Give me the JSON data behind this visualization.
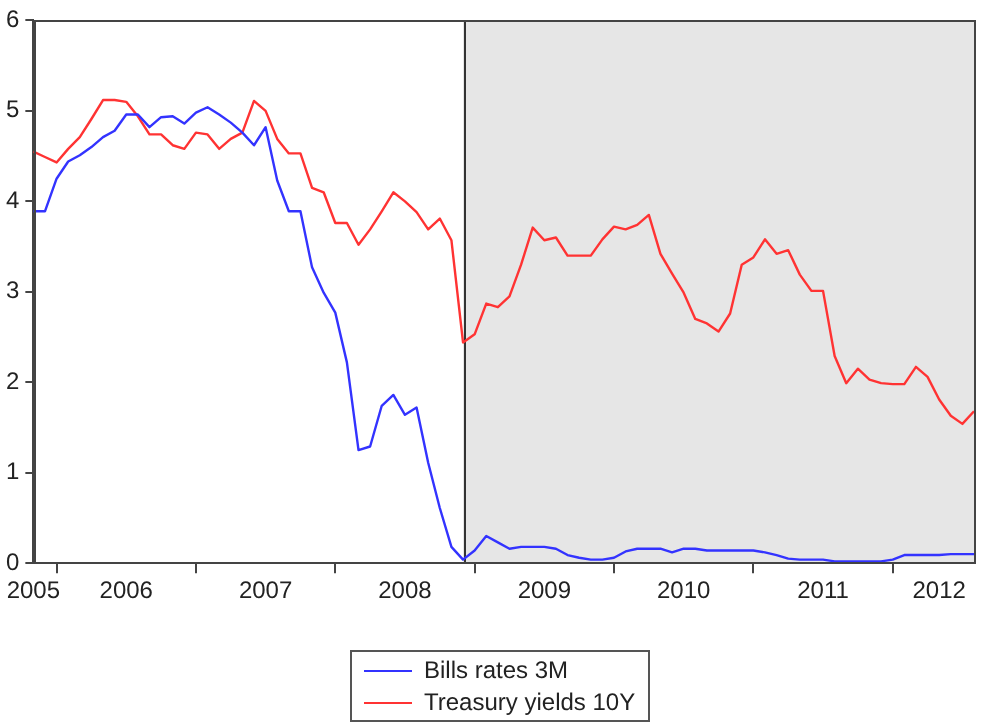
{
  "chart_data": {
    "type": "line",
    "x": [
      "2005-11",
      "2005-12",
      "2006-01",
      "2006-02",
      "2006-03",
      "2006-04",
      "2006-05",
      "2006-06",
      "2006-07",
      "2006-08",
      "2006-09",
      "2006-10",
      "2006-11",
      "2006-12",
      "2007-01",
      "2007-02",
      "2007-03",
      "2007-04",
      "2007-05",
      "2007-06",
      "2007-07",
      "2007-08",
      "2007-09",
      "2007-10",
      "2007-11",
      "2007-12",
      "2008-01",
      "2008-02",
      "2008-03",
      "2008-04",
      "2008-05",
      "2008-06",
      "2008-07",
      "2008-08",
      "2008-09",
      "2008-10",
      "2008-11",
      "2008-12",
      "2009-01",
      "2009-02",
      "2009-03",
      "2009-04",
      "2009-05",
      "2009-06",
      "2009-07",
      "2009-08",
      "2009-09",
      "2009-10",
      "2009-11",
      "2009-12",
      "2010-01",
      "2010-02",
      "2010-03",
      "2010-04",
      "2010-05",
      "2010-06",
      "2010-07",
      "2010-08",
      "2010-09",
      "2010-10",
      "2010-11",
      "2010-12",
      "2011-01",
      "2011-02",
      "2011-03",
      "2011-04",
      "2011-05",
      "2011-06",
      "2011-07",
      "2011-08",
      "2011-09",
      "2011-10",
      "2011-11",
      "2011-12",
      "2012-01",
      "2012-02",
      "2012-03",
      "2012-04",
      "2012-05",
      "2012-06",
      "2012-07",
      "2012-08"
    ],
    "series": [
      {
        "name": "Bills rates 3M",
        "color": "#3333ff",
        "values": [
          3.89,
          3.89,
          4.25,
          4.44,
          4.51,
          4.6,
          4.71,
          4.78,
          4.96,
          4.96,
          4.82,
          4.93,
          4.94,
          4.86,
          4.98,
          5.04,
          4.96,
          4.87,
          4.76,
          4.62,
          4.82,
          4.23,
          3.89,
          3.89,
          3.27,
          2.99,
          2.77,
          2.22,
          1.25,
          1.29,
          1.74,
          1.86,
          1.64,
          1.72,
          1.11,
          0.61,
          0.18,
          0.04,
          0.14,
          0.3,
          0.23,
          0.16,
          0.18,
          0.18,
          0.18,
          0.16,
          0.09,
          0.06,
          0.04,
          0.04,
          0.06,
          0.13,
          0.16,
          0.16,
          0.16,
          0.12,
          0.16,
          0.16,
          0.14,
          0.14,
          0.14,
          0.14,
          0.14,
          0.12,
          0.09,
          0.05,
          0.04,
          0.04,
          0.04,
          0.02,
          0.02,
          0.02,
          0.02,
          0.02,
          0.04,
          0.09,
          0.09,
          0.09,
          0.09,
          0.1,
          0.1,
          0.1
        ]
      },
      {
        "name": "Treasury yields 10Y",
        "color": "#ff3333",
        "values": [
          4.55,
          4.49,
          4.43,
          4.58,
          4.71,
          4.91,
          5.12,
          5.12,
          5.1,
          4.94,
          4.74,
          4.74,
          4.62,
          4.58,
          4.76,
          4.74,
          4.58,
          4.69,
          4.76,
          5.11,
          5.0,
          4.69,
          4.53,
          4.53,
          4.15,
          4.1,
          3.76,
          3.76,
          3.52,
          3.69,
          3.89,
          4.1,
          4.0,
          3.88,
          3.69,
          3.81,
          3.57,
          2.44,
          2.53,
          2.87,
          2.83,
          2.95,
          3.3,
          3.71,
          3.57,
          3.6,
          3.4,
          3.4,
          3.4,
          3.58,
          3.72,
          3.69,
          3.74,
          3.85,
          3.42,
          3.2,
          2.99,
          2.7,
          2.65,
          2.56,
          2.76,
          3.3,
          3.38,
          3.58,
          3.42,
          3.46,
          3.19,
          3.01,
          3.01,
          2.29,
          1.99,
          2.15,
          2.03,
          1.99,
          1.98,
          1.98,
          2.17,
          2.06,
          1.81,
          1.63,
          1.54,
          1.68
        ]
      }
    ],
    "xlim": [
      "2005-11",
      "2012-08"
    ],
    "xticks": [
      {
        "value": "2005-11",
        "label": "2005"
      },
      {
        "value": "2006-01",
        "label": null
      },
      {
        "value": "2006-07",
        "label": "2006"
      },
      {
        "value": "2007-01",
        "label": null
      },
      {
        "value": "2007-07",
        "label": "2007"
      },
      {
        "value": "2008-01",
        "label": null
      },
      {
        "value": "2008-07",
        "label": "2008"
      },
      {
        "value": "2009-01",
        "label": null
      },
      {
        "value": "2009-07",
        "label": "2009"
      },
      {
        "value": "2010-01",
        "label": null
      },
      {
        "value": "2010-07",
        "label": "2010"
      },
      {
        "value": "2011-01",
        "label": null
      },
      {
        "value": "2011-07",
        "label": "2011"
      },
      {
        "value": "2012-01",
        "label": null
      },
      {
        "value": "2012-05",
        "label": "2012"
      }
    ],
    "ylim": [
      0,
      6
    ],
    "yticks": [
      0,
      1,
      2,
      3,
      4,
      5,
      6
    ],
    "bands": [
      {
        "axis": "x",
        "from": "2008-12",
        "to": "2012-08",
        "color": "#e6e6e6"
      }
    ],
    "ref_lines": [
      {
        "axis": "x",
        "value": "2008-12",
        "color": "#333333"
      }
    ],
    "grid": false,
    "legend": "bottom",
    "marker": "none",
    "line_style": "solid"
  }
}
